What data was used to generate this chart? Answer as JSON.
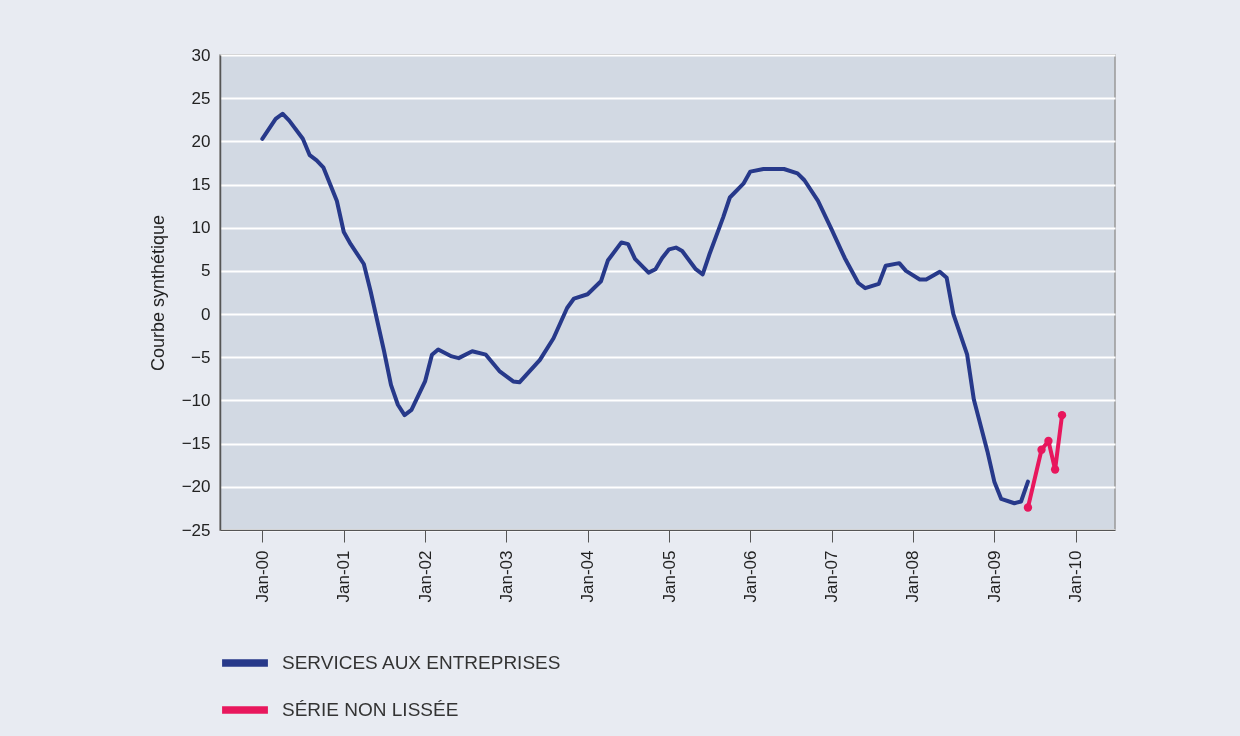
{
  "chart_data": {
    "type": "line",
    "ylabel": "Courbe synthétique",
    "xlim": [
      "1999-06-25",
      "2010-06-27"
    ],
    "xticks": [
      {
        "value": "2000-01",
        "label": "Jan-00"
      },
      {
        "value": "2001-01",
        "label": "Jan-01"
      },
      {
        "value": "2002-01",
        "label": "Jan-02"
      },
      {
        "value": "2003-01",
        "label": "Jan-03"
      },
      {
        "value": "2004-01",
        "label": "Jan-04"
      },
      {
        "value": "2005-01",
        "label": "Jan-05"
      },
      {
        "value": "2006-01",
        "label": "Jan-06"
      },
      {
        "value": "2007-01",
        "label": "Jan-07"
      },
      {
        "value": "2008-01",
        "label": "Jan-08"
      },
      {
        "value": "2009-01",
        "label": "Jan-09"
      },
      {
        "value": "2010-01",
        "label": "Jan-10"
      }
    ],
    "ylim": [
      -25,
      30
    ],
    "yticks": [
      -25,
      -20,
      -15,
      -10,
      -5,
      0,
      5,
      10,
      15,
      20,
      25,
      30
    ],
    "grid": "y",
    "legend": "bottom",
    "line_style": "solid",
    "series": [
      {
        "name": "SERVICES AUX ENTREPRISES",
        "color": "#27398a",
        "marker": "none",
        "x": [
          "2000-01",
          "2000-03",
          "2000-04",
          "2000-05",
          "2000-07",
          "2000-08",
          "2000-09",
          "2000-10",
          "2000-12",
          "2001-01",
          "2001-02",
          "2001-04",
          "2001-05",
          "2001-07",
          "2001-08",
          "2001-09",
          "2001-10",
          "2001-11",
          "2002-01",
          "2002-02",
          "2002-03",
          "2002-05",
          "2002-06",
          "2002-08",
          "2002-10",
          "2002-12",
          "2003-02",
          "2003-03",
          "2003-06",
          "2003-08",
          "2003-10",
          "2003-11",
          "2004-01",
          "2004-03",
          "2004-04",
          "2004-06",
          "2004-07",
          "2004-08",
          "2004-10",
          "2004-11",
          "2004-12",
          "2005-01",
          "2005-02",
          "2005-03",
          "2005-05",
          "2005-06",
          "2005-07",
          "2005-09",
          "2005-10",
          "2005-12",
          "2006-01",
          "2006-03",
          "2006-06",
          "2006-08",
          "2006-09",
          "2006-11",
          "2007-01",
          "2007-03",
          "2007-05",
          "2007-06",
          "2007-08",
          "2007-09",
          "2007-11",
          "2007-12",
          "2008-02",
          "2008-03",
          "2008-05",
          "2008-06",
          "2008-07",
          "2008-09",
          "2008-10",
          "2008-12",
          "2009-01",
          "2009-02",
          "2009-04",
          "2009-05",
          "2009-06"
        ],
        "values": [
          20.3,
          22.6,
          23.2,
          22.4,
          20.3,
          18.4,
          17.8,
          17.0,
          13.1,
          9.5,
          8.1,
          5.8,
          2.7,
          -4.3,
          -8.2,
          -10.5,
          -11.7,
          -11.1,
          -7.8,
          -4.7,
          -4.1,
          -4.9,
          -5.1,
          -4.3,
          -4.7,
          -6.6,
          -7.8,
          -7.9,
          -5.3,
          -2.8,
          0.7,
          1.8,
          2.3,
          3.8,
          6.2,
          8.3,
          8.1,
          6.4,
          4.8,
          5.2,
          6.5,
          7.5,
          7.7,
          7.3,
          5.2,
          4.6,
          6.9,
          11.2,
          13.5,
          15.1,
          16.5,
          16.8,
          16.8,
          16.3,
          15.5,
          13.1,
          9.8,
          6.5,
          3.6,
          3.0,
          3.5,
          5.6,
          5.9,
          5.0,
          4.0,
          4.0,
          4.9,
          4.2,
          0,
          -4.7,
          -9.9,
          -15.9,
          -19.4,
          -21.4,
          -21.9,
          -21.7,
          -19.4
        ]
      },
      {
        "name": "SÉRIE NON LISSÉE",
        "color": "#e8175d",
        "marker": "circle",
        "x": [
          "2009-06",
          "2009-08",
          "2009-09",
          "2009-10",
          "2009-11"
        ],
        "values": [
          -22.4,
          -15.7,
          -14.7,
          -18.0,
          -11.7
        ]
      }
    ]
  }
}
